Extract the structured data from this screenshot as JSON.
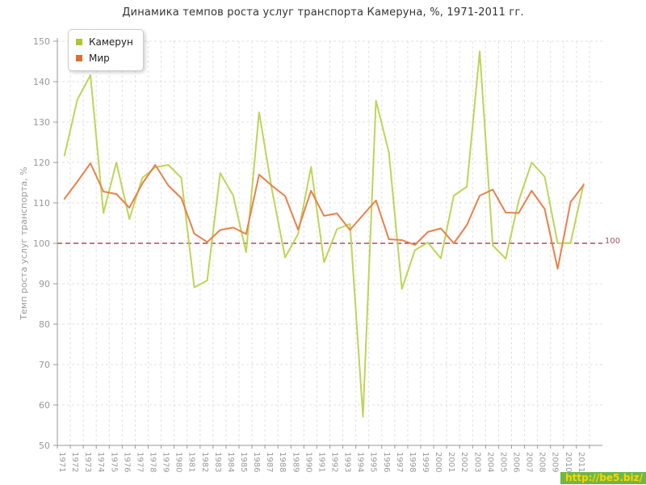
{
  "title": "Динамика темпов роста услуг транспорта Камеруна, %, 1971-2011 гг.",
  "watermark": {
    "text": "http://be5.biz/",
    "bg_color": "#6fb845",
    "text_color": "#ffd400"
  },
  "axis": {
    "y_title": "Темп роста услуг транспорта, %",
    "tick_color": "#999999",
    "label_color": "#999999",
    "grid_color": "#e1e1e1"
  },
  "chart_data": {
    "type": "line",
    "title": "Динамика темпов роста услуг транспорта Камеруна, %, 1971-2011 гг.",
    "xlabel": "",
    "ylabel": "Темп роста услуг транспорта, %",
    "ylim": [
      50,
      150
    ],
    "yticks": [
      50,
      60,
      70,
      80,
      90,
      100,
      110,
      120,
      130,
      140,
      150
    ],
    "grid": true,
    "legend_position": "top-left",
    "baseline": {
      "value": 100,
      "label": "100",
      "line_color": "#8b3038",
      "label_color": "#a55560"
    },
    "categories": [
      "1971",
      "1972",
      "1973",
      "1974",
      "1975",
      "1976",
      "1977",
      "1978",
      "1979",
      "1980",
      "1981",
      "1982",
      "1983",
      "1984",
      "1985",
      "1986",
      "1987",
      "1988",
      "1989",
      "1990",
      "1991",
      "1992",
      "1993",
      "1994",
      "1995",
      "1996",
      "1997",
      "1998",
      "1999",
      "2000",
      "2001",
      "2002",
      "2003",
      "2004",
      "2005",
      "2006",
      "2007",
      "2008",
      "2009",
      "2010",
      "2011"
    ],
    "series": [
      {
        "name": "Камерун",
        "line_color": "#bdd558",
        "swatch_color": "#a9c92f",
        "values": [
          121.7,
          135.6,
          141.6,
          107.5,
          120.0,
          106.0,
          116.2,
          118.8,
          119.4,
          116.2,
          89.1,
          90.8,
          117.4,
          111.8,
          97.8,
          132.4,
          113.0,
          96.5,
          102.3,
          118.9,
          95.3,
          103.5,
          104.8,
          57.1,
          135.3,
          122.5,
          88.7,
          98.3,
          100.2,
          96.3,
          111.8,
          114.0,
          147.5,
          99.5,
          96.2,
          110.5,
          120.0,
          116.5,
          100.0,
          100.1,
          114.7
        ]
      },
      {
        "name": "Мир",
        "line_color": "#e8814c",
        "swatch_color": "#e06f2e",
        "values": [
          111.0,
          115.3,
          119.8,
          112.8,
          112.2,
          108.8,
          114.8,
          119.4,
          114.3,
          111.2,
          102.4,
          100.3,
          103.3,
          103.9,
          102.3,
          117.0,
          114.2,
          111.7,
          103.4,
          113.0,
          106.8,
          107.4,
          103.3,
          107.0,
          110.6,
          101.0,
          100.8,
          99.6,
          102.8,
          103.7,
          100.0,
          104.5,
          111.8,
          113.3,
          107.6,
          107.5,
          113.0,
          108.5,
          93.7,
          110.2,
          114.4
        ]
      }
    ]
  }
}
